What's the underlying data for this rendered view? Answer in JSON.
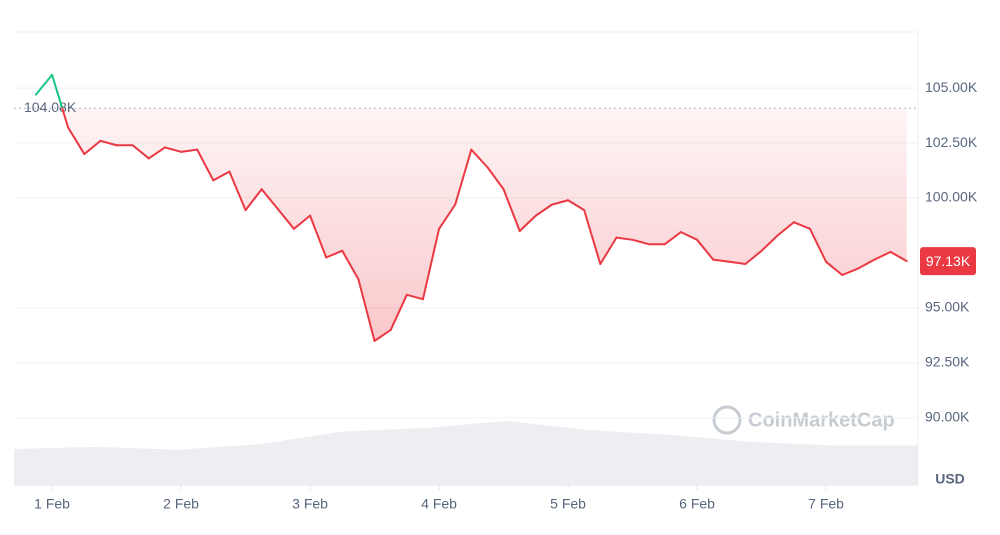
{
  "chart_data": {
    "type": "line",
    "series": [
      {
        "color": "#ea3943",
        "up_color": "#16c784",
        "values": [
          104700,
          105600,
          103200,
          102000,
          102600,
          102400,
          102400,
          101800,
          102300,
          102100,
          102200,
          100800,
          101200,
          99450,
          100400,
          99500,
          98600,
          99200,
          97300,
          97600,
          96300,
          93500,
          94000,
          95600,
          95400,
          98600,
          99700,
          102200,
          101400,
          100400,
          98500,
          99200,
          99700,
          99900,
          99450,
          97000,
          98200,
          98100,
          97900,
          97900,
          98450,
          98100,
          97200,
          97100,
          97000,
          97600,
          98300,
          98900,
          98600,
          97100,
          96500,
          96800,
          97200,
          97550,
          97130
        ]
      }
    ],
    "baseline": {
      "value": 104080,
      "label": "104.08K"
    },
    "current": {
      "value": 97130,
      "label": "97.13K"
    },
    "volume": [
      20,
      23,
      19,
      27,
      45,
      50,
      60,
      47,
      40,
      30,
      25,
      25
    ],
    "xlim": [
      -1.36,
      54.7
    ],
    "xticks": [
      {
        "value": 1,
        "label": "1 Feb"
      },
      {
        "value": 9,
        "label": "2 Feb"
      },
      {
        "value": 17,
        "label": "3 Feb"
      },
      {
        "value": 25,
        "label": "4 Feb"
      },
      {
        "value": 33,
        "label": "5 Feb"
      },
      {
        "value": 41,
        "label": "6 Feb"
      },
      {
        "value": 49,
        "label": "7 Feb"
      }
    ],
    "ylim": [
      86950,
      107550
    ],
    "yticks": [
      {
        "value": 90000,
        "label": "90.00K"
      },
      {
        "value": 92500,
        "label": "92.50K"
      },
      {
        "value": 95000,
        "label": "95.00K"
      },
      {
        "value": 100000,
        "label": "100.00K"
      },
      {
        "value": 102500,
        "label": "102.50K"
      },
      {
        "value": 105000,
        "label": "105.00K"
      }
    ],
    "grid": true,
    "y_axis_unit": "USD",
    "watermark": "CoinMarketCap"
  }
}
